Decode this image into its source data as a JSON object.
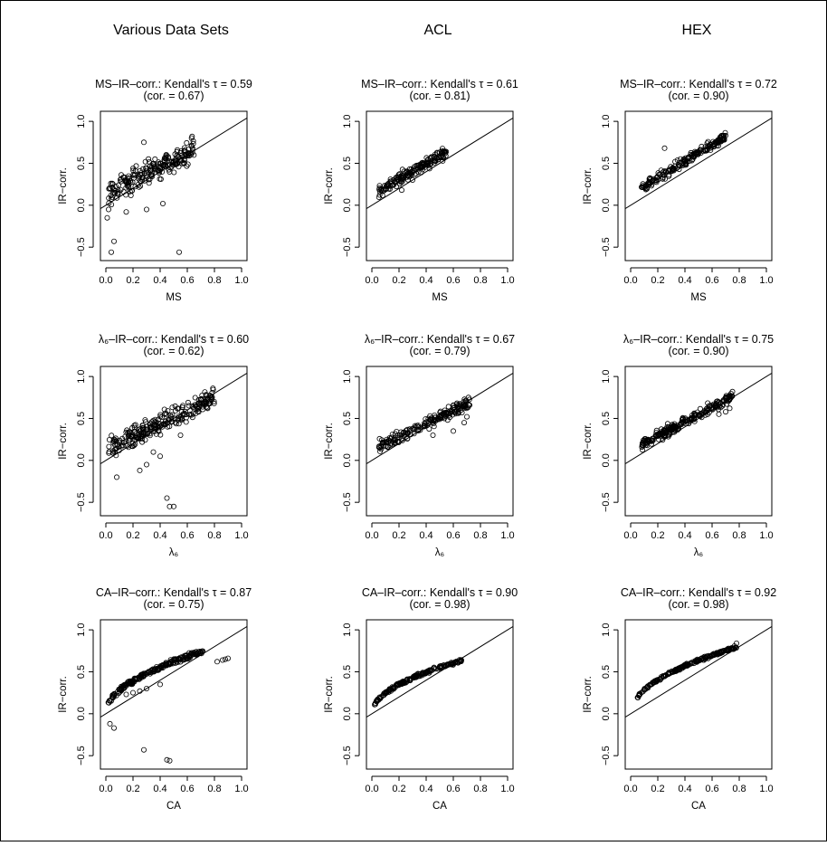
{
  "column_titles": [
    "Various Data Sets",
    "ACL",
    "HEX"
  ],
  "chart_data": [
    {
      "type": "scatter",
      "title": "MS–IR–corr.: Kendall's τ = 0.59",
      "subtitle": "(cor. = 0.67)",
      "xlabel": "MS",
      "ylabel": "IR−corr.",
      "xlim": [
        0,
        1
      ],
      "ylim": [
        -0.6,
        1.05
      ],
      "xticks": [
        "0.0",
        "0.2",
        "0.4",
        "0.6",
        "0.8",
        "1.0"
      ],
      "yticks": [
        "−0.5",
        "0.0",
        "0.5",
        "1.0"
      ],
      "yticks_values": [
        -0.5,
        0,
        0.5,
        1.0
      ],
      "reference_line": {
        "slope": 1,
        "intercept": 0
      },
      "cloud": {
        "x_range": [
          0.02,
          0.65
        ],
        "slope": 0.85,
        "intercept": 0.12,
        "spread": 0.12,
        "n": 220
      },
      "outliers": [
        [
          0.06,
          -0.43
        ],
        [
          0.04,
          -0.56
        ],
        [
          0.54,
          -0.56
        ],
        [
          0.42,
          0.02
        ],
        [
          0.01,
          -0.15
        ],
        [
          0.02,
          -0.05
        ],
        [
          0.15,
          -0.08
        ],
        [
          0.3,
          -0.05
        ],
        [
          0.28,
          0.75
        ]
      ]
    },
    {
      "type": "scatter",
      "title": "MS–IR–corr.: Kendall's τ = 0.61",
      "subtitle": "(cor. = 0.81)",
      "xlabel": "MS",
      "ylabel": "IR−corr.",
      "xlim": [
        0,
        1
      ],
      "ylim": [
        -0.6,
        1.05
      ],
      "xticks": [
        "0.0",
        "0.2",
        "0.4",
        "0.6",
        "0.8",
        "1.0"
      ],
      "yticks": [
        "−0.5",
        "0.0",
        "0.5",
        "1.0"
      ],
      "yticks_values": [
        -0.5,
        0,
        0.5,
        1.0
      ],
      "reference_line": {
        "slope": 1,
        "intercept": 0
      },
      "cloud": {
        "x_range": [
          0.05,
          0.55
        ],
        "slope": 0.95,
        "intercept": 0.12,
        "spread": 0.06,
        "n": 180
      },
      "outliers": [
        [
          0.22,
          0.18
        ],
        [
          0.3,
          0.3
        ]
      ]
    },
    {
      "type": "scatter",
      "title": "MS–IR–corr.: Kendall's τ = 0.72",
      "subtitle": "(cor. = 0.90)",
      "xlabel": "MS",
      "ylabel": "IR−corr.",
      "xlim": [
        0,
        1
      ],
      "ylim": [
        -0.6,
        1.05
      ],
      "xticks": [
        "0.0",
        "0.2",
        "0.4",
        "0.6",
        "0.8",
        "1.0"
      ],
      "yticks": [
        "−0.5",
        "0.0",
        "0.5",
        "1.0"
      ],
      "yticks_values": [
        -0.5,
        0,
        0.5,
        1.0
      ],
      "reference_line": {
        "slope": 1,
        "intercept": 0
      },
      "cloud": {
        "x_range": [
          0.08,
          0.7
        ],
        "slope": 1.0,
        "intercept": 0.12,
        "spread": 0.05,
        "n": 200
      },
      "outliers": [
        [
          0.25,
          0.68
        ],
        [
          0.7,
          0.83
        ]
      ]
    },
    {
      "type": "scatter",
      "title": "λ₆–IR–corr.: Kendall's τ = 0.60",
      "subtitle": "(cor. = 0.62)",
      "xlabel": "λ₆",
      "ylabel": "IR−corr.",
      "xlim": [
        0,
        1
      ],
      "ylim": [
        -0.6,
        1.05
      ],
      "xticks": [
        "0.0",
        "0.2",
        "0.4",
        "0.6",
        "0.8",
        "1.0"
      ],
      "yticks": [
        "−0.5",
        "0.0",
        "0.5",
        "1.0"
      ],
      "yticks_values": [
        -0.5,
        0,
        0.5,
        1.0
      ],
      "reference_line": {
        "slope": 1,
        "intercept": 0
      },
      "cloud": {
        "x_range": [
          0.02,
          0.8
        ],
        "slope": 0.8,
        "intercept": 0.12,
        "spread": 0.1,
        "n": 260
      },
      "outliers": [
        [
          0.45,
          -0.45
        ],
        [
          0.47,
          -0.55
        ],
        [
          0.5,
          -0.55
        ],
        [
          0.08,
          -0.2
        ],
        [
          0.25,
          -0.12
        ],
        [
          0.3,
          -0.05
        ],
        [
          0.4,
          0.05
        ],
        [
          0.35,
          0.1
        ],
        [
          0.55,
          0.3
        ]
      ]
    },
    {
      "type": "scatter",
      "title": "λ₆–IR–corr.: Kendall's τ = 0.67",
      "subtitle": "(cor. = 0.79)",
      "xlabel": "λ₆",
      "ylabel": "IR−corr.",
      "xlim": [
        0,
        1
      ],
      "ylim": [
        -0.6,
        1.05
      ],
      "xticks": [
        "0.0",
        "0.2",
        "0.4",
        "0.6",
        "0.8",
        "1.0"
      ],
      "yticks": [
        "−0.5",
        "0.0",
        "0.5",
        "1.0"
      ],
      "yticks_values": [
        -0.5,
        0,
        0.5,
        1.0
      ],
      "reference_line": {
        "slope": 1,
        "intercept": 0
      },
      "cloud": {
        "x_range": [
          0.05,
          0.72
        ],
        "slope": 0.8,
        "intercept": 0.12,
        "spread": 0.07,
        "n": 200
      },
      "outliers": [
        [
          0.68,
          0.45
        ],
        [
          0.7,
          0.52
        ],
        [
          0.6,
          0.35
        ],
        [
          0.45,
          0.3
        ]
      ]
    },
    {
      "type": "scatter",
      "title": "λ₆–IR–corr.: Kendall's τ = 0.75",
      "subtitle": "(cor. = 0.90)",
      "xlabel": "λ₆",
      "ylabel": "IR−corr.",
      "xlim": [
        0,
        1
      ],
      "ylim": [
        -0.6,
        1.05
      ],
      "xticks": [
        "0.0",
        "0.2",
        "0.4",
        "0.6",
        "0.8",
        "1.0"
      ],
      "yticks": [
        "−0.5",
        "0.0",
        "0.5",
        "1.0"
      ],
      "yticks_values": [
        -0.5,
        0,
        0.5,
        1.0
      ],
      "reference_line": {
        "slope": 1,
        "intercept": 0
      },
      "cloud": {
        "x_range": [
          0.08,
          0.75
        ],
        "slope": 0.85,
        "intercept": 0.12,
        "spread": 0.05,
        "n": 240
      },
      "outliers": [
        [
          0.7,
          0.58
        ],
        [
          0.73,
          0.62
        ],
        [
          0.65,
          0.55
        ],
        [
          0.75,
          0.82
        ]
      ]
    },
    {
      "type": "scatter",
      "title": "CA–IR–corr.: Kendall's τ = 0.87",
      "subtitle": "(cor. = 0.75)",
      "xlabel": "CA",
      "ylabel": "IR−corr.",
      "xlim": [
        0,
        1
      ],
      "ylim": [
        -0.6,
        1.05
      ],
      "xticks": [
        "0.0",
        "0.2",
        "0.4",
        "0.6",
        "0.8",
        "1.0"
      ],
      "yticks": [
        "−0.5",
        "0.0",
        "0.5",
        "1.0"
      ],
      "yticks_values": [
        -0.5,
        0,
        0.5,
        1.0
      ],
      "reference_line": {
        "slope": 1,
        "intercept": 0
      },
      "cloud": {
        "x_range": [
          0.01,
          0.72
        ],
        "curve": "sqrt",
        "scale": 0.88,
        "spread": 0.025,
        "n": 240
      },
      "outliers": [
        [
          0.28,
          -0.43
        ],
        [
          0.45,
          -0.55
        ],
        [
          0.47,
          -0.56
        ],
        [
          0.06,
          -0.17
        ],
        [
          0.03,
          -0.12
        ],
        [
          0.82,
          0.62
        ],
        [
          0.86,
          0.64
        ],
        [
          0.88,
          0.65
        ],
        [
          0.9,
          0.66
        ],
        [
          0.15,
          0.23
        ],
        [
          0.2,
          0.25
        ],
        [
          0.25,
          0.27
        ],
        [
          0.3,
          0.3
        ],
        [
          0.4,
          0.35
        ]
      ]
    },
    {
      "type": "scatter",
      "title": "CA–IR–corr.: Kendall's τ = 0.90",
      "subtitle": "(cor. = 0.98)",
      "xlabel": "CA",
      "ylabel": "IR−corr.",
      "xlim": [
        0,
        1
      ],
      "ylim": [
        -0.6,
        1.05
      ],
      "xticks": [
        "0.0",
        "0.2",
        "0.4",
        "0.6",
        "0.8",
        "1.0"
      ],
      "yticks": [
        "−0.5",
        "0.0",
        "0.5",
        "1.0"
      ],
      "yticks_values": [
        -0.5,
        0,
        0.5,
        1.0
      ],
      "reference_line": {
        "slope": 1,
        "intercept": 0
      },
      "cloud": {
        "x_range": [
          0.02,
          0.66
        ],
        "curve": "sqrt",
        "scale": 0.78,
        "spread": 0.015,
        "n": 200
      },
      "outliers": []
    },
    {
      "type": "scatter",
      "title": "CA–IR–corr.: Kendall's τ = 0.92",
      "subtitle": "(cor. = 0.98)",
      "xlabel": "CA",
      "ylabel": "IR−corr.",
      "xlim": [
        0,
        1
      ],
      "ylim": [
        -0.6,
        1.05
      ],
      "xticks": [
        "0.0",
        "0.2",
        "0.4",
        "0.6",
        "0.8",
        "1.0"
      ],
      "yticks": [
        "−0.5",
        "0.0",
        "0.5",
        "1.0"
      ],
      "yticks_values": [
        -0.5,
        0,
        0.5,
        1.0
      ],
      "reference_line": {
        "slope": 1,
        "intercept": 0
      },
      "cloud": {
        "x_range": [
          0.05,
          0.78
        ],
        "curve": "sqrt",
        "scale": 0.9,
        "spread": 0.015,
        "n": 210
      },
      "outliers": [
        [
          0.78,
          0.84
        ]
      ]
    }
  ]
}
